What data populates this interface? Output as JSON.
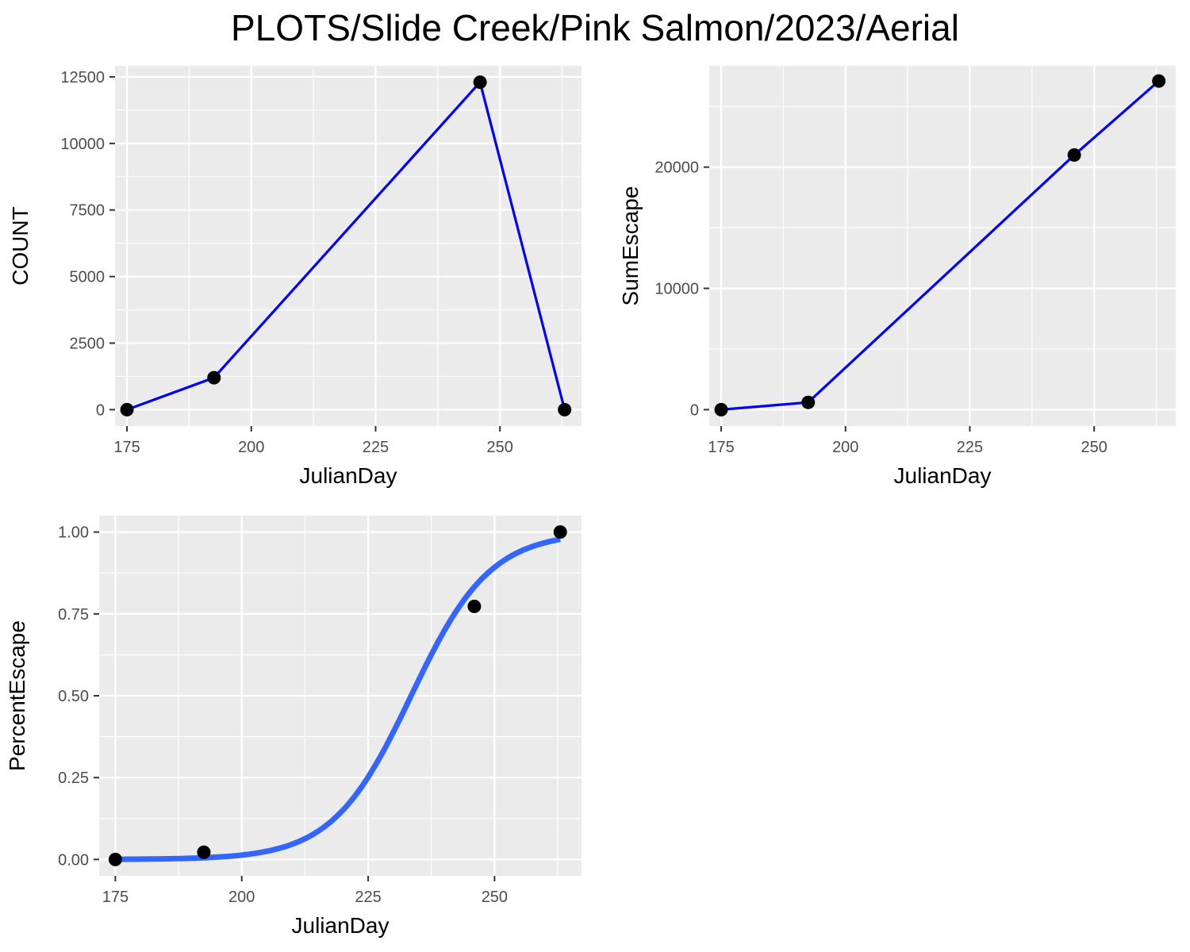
{
  "title": "PLOTS/Slide Creek/Pink Salmon/2023/Aerial",
  "colors": {
    "panel_bg": "#EBEBEB",
    "grid": "#FFFFFF",
    "line": "#0000FF",
    "smooth": "#3366FF",
    "point": "#000000",
    "tick_text": "#4D4D4D",
    "tick_mark": "#333333"
  },
  "chart_data": [
    {
      "type": "line",
      "xlabel": "JulianDay",
      "ylabel": "COUNT",
      "xlim": [
        172.6,
        266.4
      ],
      "ylim": [
        -615,
        12915
      ],
      "xticks": [
        175,
        200,
        225,
        250
      ],
      "xtick_labels": [
        "175",
        "200",
        "225",
        "250"
      ],
      "yticks": [
        0,
        2500,
        5000,
        7500,
        10000,
        12500
      ],
      "ytick_labels": [
        "0",
        "2500",
        "5000",
        "7500",
        "10000",
        "12500"
      ],
      "grid": true,
      "series": [
        {
          "x": [
            175,
            192.5,
            246,
            263
          ],
          "y": [
            0,
            1200,
            12300,
            0
          ]
        }
      ]
    },
    {
      "type": "line",
      "xlabel": "JulianDay",
      "ylabel": "SumEscape",
      "xlim": [
        172.6,
        266.4
      ],
      "ylim": [
        -1350,
        28350
      ],
      "xticks": [
        175,
        200,
        225,
        250
      ],
      "xtick_labels": [
        "175",
        "200",
        "225",
        "250"
      ],
      "yticks": [
        0,
        10000,
        20000
      ],
      "ytick_labels": [
        "0",
        "10000",
        "20000"
      ],
      "grid": true,
      "series": [
        {
          "x": [
            175,
            192.5,
            246,
            263
          ],
          "y": [
            0,
            600,
            21000,
            27100
          ]
        }
      ]
    },
    {
      "type": "scatter",
      "xlabel": "JulianDay",
      "ylabel": "PercentEscape",
      "xlim": [
        171.8,
        267.2
      ],
      "ylim": [
        -0.05,
        1.05
      ],
      "xticks": [
        175,
        200,
        225,
        250
      ],
      "xtick_labels": [
        "175",
        "200",
        "225",
        "250"
      ],
      "yticks": [
        0,
        0.25,
        0.5,
        0.75,
        1.0
      ],
      "ytick_labels": [
        "0.00",
        "0.25",
        "0.50",
        "0.75",
        "1.00"
      ],
      "grid": true,
      "points": {
        "x": [
          175,
          192.5,
          246,
          263
        ],
        "y": [
          0,
          0.022,
          0.773,
          1.0
        ]
      },
      "smooth": {
        "type": "logistic",
        "midpoint": 233.5,
        "scale": 7.8,
        "x_range": [
          175,
          263
        ]
      }
    }
  ]
}
